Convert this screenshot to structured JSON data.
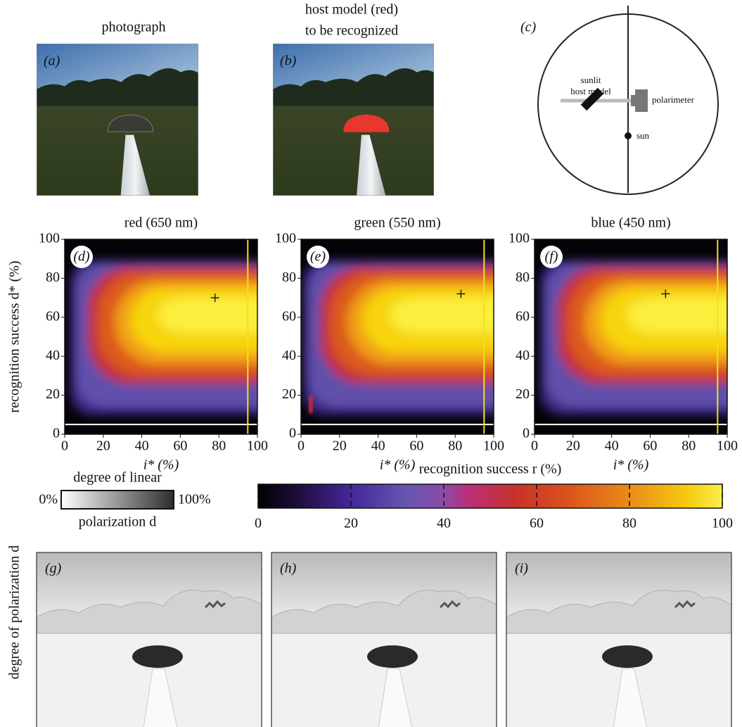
{
  "panels_top": [
    {
      "label": "(a)",
      "title": "photograph"
    },
    {
      "label": "(b)",
      "title_lines": [
        "host model (red)",
        "to be recognized"
      ]
    },
    {
      "label": "(c)",
      "host_lines": [
        "sunlit",
        "host model"
      ],
      "instrument": "polarimeter",
      "sun": "sun"
    }
  ],
  "heatmaps": {
    "y_label": "recognition success d* (%)",
    "panels": [
      {
        "label": "(d)",
        "title": "red (650 nm)",
        "x_label": "i* (%)",
        "xticks": [
          0,
          20,
          40,
          60,
          80,
          100
        ],
        "yticks": [
          0,
          20,
          40,
          60,
          80,
          100
        ]
      },
      {
        "label": "(e)",
        "title": "green (550 nm)",
        "x_label": "i* (%)",
        "xticks": [
          0,
          20,
          40,
          60,
          80,
          100
        ],
        "yticks": [
          0,
          20,
          40,
          60,
          80,
          100
        ]
      },
      {
        "label": "(f)",
        "title": "blue (450 nm)",
        "x_label": "i* (%)",
        "xticks": [
          0,
          20,
          40,
          60,
          80,
          100
        ],
        "yticks": [
          0,
          20,
          40,
          60,
          80,
          100
        ]
      }
    ]
  },
  "grayscale_bar": {
    "title_top": "degree of linear",
    "title_bottom": "polarization d",
    "min_label": "0%",
    "max_label": "100%"
  },
  "color_bar": {
    "title": "recognition success r (%)",
    "ticks": [
      0,
      20,
      40,
      60,
      80,
      100
    ]
  },
  "bottom": {
    "y_label": "degree of polarization d",
    "panels": [
      {
        "label": "(g)"
      },
      {
        "label": "(h)"
      },
      {
        "label": "(i)"
      }
    ]
  }
}
